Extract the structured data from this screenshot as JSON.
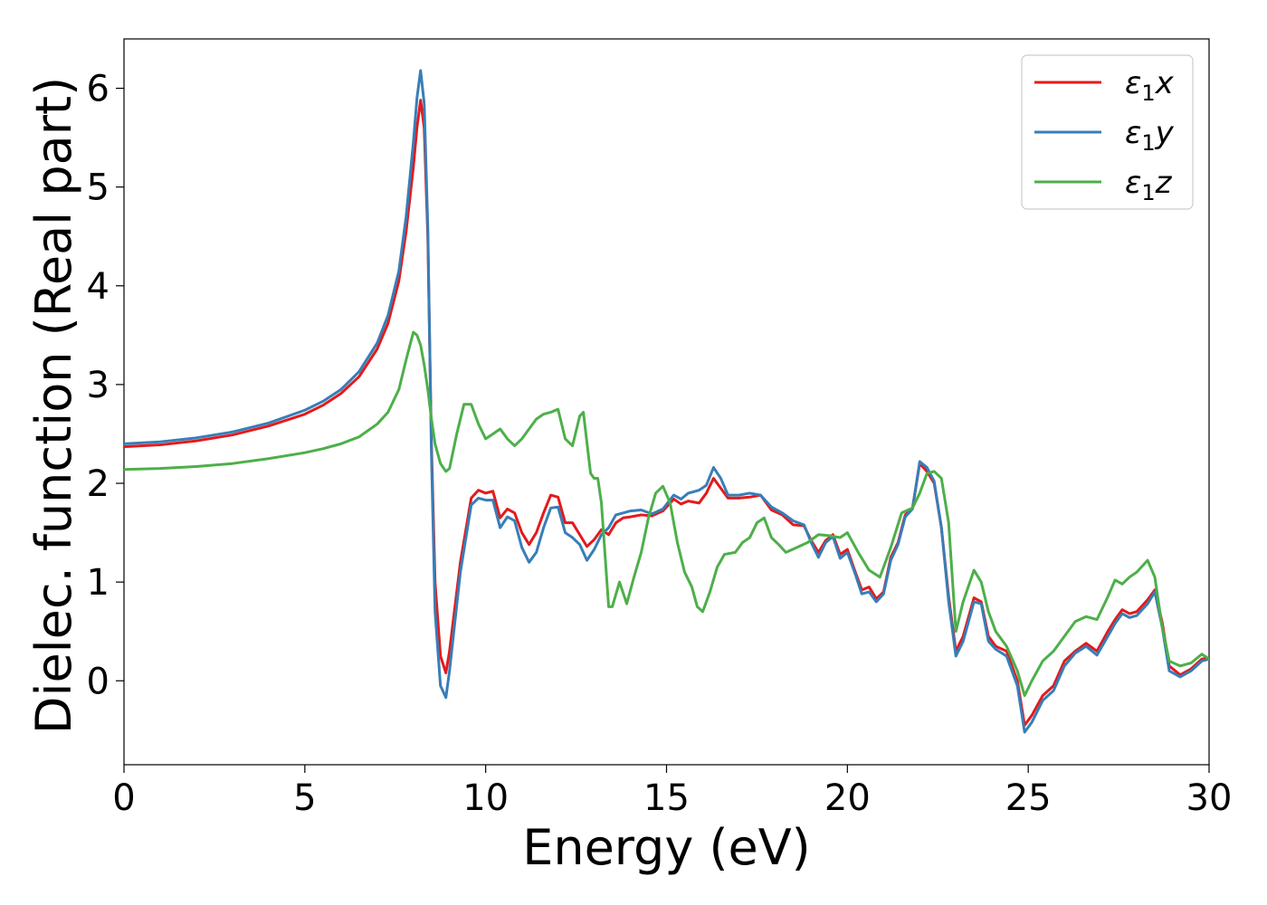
{
  "chart_data": {
    "type": "line",
    "xlabel": "Energy (eV)",
    "ylabel": "Dielec. function (Real part)",
    "xlim": [
      0,
      30
    ],
    "ylim": [
      -0.85,
      6.5
    ],
    "xticks": [
      0,
      5,
      10,
      15,
      20,
      25,
      30
    ],
    "yticks": [
      0,
      1,
      2,
      3,
      4,
      5,
      6
    ],
    "grid": false,
    "legend_position": "top-right",
    "series": [
      {
        "name": "ε1x",
        "legend_base": "ε",
        "legend_sub": "1",
        "legend_var": "x",
        "color": "#e41a1c",
        "x": [
          0,
          1,
          2,
          3,
          4,
          5,
          5.5,
          6,
          6.5,
          7,
          7.3,
          7.6,
          7.8,
          8.0,
          8.1,
          8.2,
          8.3,
          8.4,
          8.5,
          8.6,
          8.75,
          8.9,
          9.0,
          9.3,
          9.6,
          9.8,
          10.0,
          10.2,
          10.4,
          10.6,
          10.8,
          11.0,
          11.2,
          11.4,
          11.6,
          11.8,
          12.0,
          12.2,
          12.4,
          12.6,
          12.8,
          13.0,
          13.2,
          13.4,
          13.6,
          13.8,
          14.0,
          14.3,
          14.6,
          14.9,
          15.2,
          15.4,
          15.6,
          15.9,
          16.1,
          16.3,
          16.5,
          16.7,
          17.0,
          17.3,
          17.6,
          17.9,
          18.2,
          18.5,
          18.8,
          19.0,
          19.2,
          19.4,
          19.6,
          19.8,
          20.0,
          20.2,
          20.4,
          20.6,
          20.8,
          21.0,
          21.2,
          21.4,
          21.6,
          21.8,
          22.0,
          22.2,
          22.4,
          22.6,
          22.8,
          23.0,
          23.2,
          23.5,
          23.7,
          23.9,
          24.1,
          24.4,
          24.7,
          24.9,
          25.1,
          25.4,
          25.7,
          26.0,
          26.3,
          26.6,
          26.9,
          27.2,
          27.4,
          27.6,
          27.8,
          28.0,
          28.3,
          28.5,
          28.7,
          28.9,
          29.2,
          29.5,
          29.8,
          30.0
        ],
        "y": [
          2.37,
          2.39,
          2.43,
          2.49,
          2.58,
          2.7,
          2.79,
          2.91,
          3.08,
          3.36,
          3.62,
          4.05,
          4.55,
          5.2,
          5.6,
          5.88,
          5.6,
          4.5,
          2.4,
          1.0,
          0.25,
          0.08,
          0.3,
          1.2,
          1.85,
          1.93,
          1.9,
          1.92,
          1.65,
          1.74,
          1.7,
          1.5,
          1.38,
          1.5,
          1.7,
          1.88,
          1.86,
          1.6,
          1.6,
          1.48,
          1.36,
          1.43,
          1.53,
          1.48,
          1.6,
          1.65,
          1.66,
          1.68,
          1.67,
          1.72,
          1.84,
          1.79,
          1.82,
          1.8,
          1.9,
          2.05,
          1.95,
          1.85,
          1.85,
          1.86,
          1.88,
          1.73,
          1.68,
          1.58,
          1.57,
          1.42,
          1.3,
          1.42,
          1.48,
          1.28,
          1.33,
          1.12,
          0.92,
          0.95,
          0.83,
          0.9,
          1.25,
          1.4,
          1.68,
          1.75,
          2.2,
          2.12,
          2.0,
          1.55,
          0.85,
          0.3,
          0.45,
          0.84,
          0.8,
          0.45,
          0.35,
          0.3,
          0.0,
          -0.45,
          -0.35,
          -0.15,
          -0.05,
          0.2,
          0.3,
          0.38,
          0.3,
          0.5,
          0.62,
          0.72,
          0.68,
          0.7,
          0.82,
          0.92,
          0.6,
          0.15,
          0.06,
          0.12,
          0.22,
          0.23
        ]
      },
      {
        "name": "ε1y",
        "legend_base": "ε",
        "legend_sub": "1",
        "legend_var": "y",
        "color": "#377eb8",
        "x": [
          0,
          1,
          2,
          3,
          4,
          5,
          5.5,
          6,
          6.5,
          7,
          7.3,
          7.6,
          7.8,
          8.0,
          8.1,
          8.2,
          8.3,
          8.4,
          8.5,
          8.6,
          8.75,
          8.9,
          9.0,
          9.3,
          9.6,
          9.8,
          10.0,
          10.2,
          10.4,
          10.6,
          10.8,
          11.0,
          11.2,
          11.4,
          11.6,
          11.8,
          12.0,
          12.2,
          12.4,
          12.6,
          12.8,
          13.0,
          13.2,
          13.4,
          13.6,
          13.8,
          14.0,
          14.3,
          14.6,
          14.9,
          15.2,
          15.4,
          15.6,
          15.9,
          16.1,
          16.3,
          16.5,
          16.7,
          17.0,
          17.3,
          17.6,
          17.9,
          18.2,
          18.5,
          18.8,
          19.0,
          19.2,
          19.4,
          19.6,
          19.8,
          20.0,
          20.2,
          20.4,
          20.6,
          20.8,
          21.0,
          21.2,
          21.4,
          21.6,
          21.8,
          22.0,
          22.2,
          22.4,
          22.6,
          22.8,
          23.0,
          23.2,
          23.5,
          23.7,
          23.9,
          24.1,
          24.4,
          24.7,
          24.9,
          25.1,
          25.4,
          25.7,
          26.0,
          26.3,
          26.6,
          26.9,
          27.2,
          27.4,
          27.6,
          27.8,
          28.0,
          28.3,
          28.5,
          28.7,
          28.9,
          29.2,
          29.5,
          29.8,
          30.0
        ],
        "y": [
          2.4,
          2.42,
          2.46,
          2.52,
          2.61,
          2.74,
          2.83,
          2.95,
          3.13,
          3.42,
          3.7,
          4.15,
          4.7,
          5.45,
          5.9,
          6.18,
          5.85,
          4.6,
          2.3,
          0.7,
          -0.05,
          -0.17,
          0.1,
          1.1,
          1.78,
          1.85,
          1.83,
          1.83,
          1.55,
          1.66,
          1.62,
          1.35,
          1.2,
          1.3,
          1.55,
          1.75,
          1.76,
          1.5,
          1.45,
          1.38,
          1.22,
          1.33,
          1.48,
          1.55,
          1.68,
          1.7,
          1.72,
          1.73,
          1.69,
          1.74,
          1.88,
          1.84,
          1.9,
          1.93,
          1.98,
          2.16,
          2.05,
          1.88,
          1.88,
          1.9,
          1.88,
          1.76,
          1.7,
          1.62,
          1.58,
          1.4,
          1.25,
          1.4,
          1.46,
          1.24,
          1.3,
          1.1,
          0.88,
          0.9,
          0.8,
          0.88,
          1.22,
          1.38,
          1.66,
          1.74,
          2.22,
          2.16,
          2.02,
          1.55,
          0.8,
          0.25,
          0.4,
          0.8,
          0.78,
          0.4,
          0.32,
          0.25,
          -0.05,
          -0.52,
          -0.42,
          -0.2,
          -0.1,
          0.15,
          0.28,
          0.35,
          0.26,
          0.45,
          0.58,
          0.68,
          0.64,
          0.66,
          0.78,
          0.9,
          0.55,
          0.1,
          0.04,
          0.1,
          0.2,
          0.22
        ]
      },
      {
        "name": "ε1z",
        "legend_base": "ε",
        "legend_sub": "1",
        "legend_var": "z",
        "color": "#4daf4a",
        "x": [
          0,
          1,
          2,
          3,
          4,
          5,
          5.5,
          6,
          6.5,
          7,
          7.3,
          7.6,
          7.8,
          8.0,
          8.1,
          8.2,
          8.3,
          8.4,
          8.5,
          8.6,
          8.75,
          8.9,
          9.0,
          9.2,
          9.4,
          9.6,
          9.8,
          10.0,
          10.2,
          10.4,
          10.6,
          10.8,
          11.0,
          11.2,
          11.4,
          11.6,
          11.8,
          12.0,
          12.2,
          12.4,
          12.6,
          12.7,
          12.9,
          13.0,
          13.1,
          13.2,
          13.4,
          13.5,
          13.7,
          13.9,
          14.1,
          14.3,
          14.5,
          14.7,
          14.9,
          15.1,
          15.3,
          15.5,
          15.7,
          15.85,
          16.0,
          16.2,
          16.4,
          16.6,
          16.9,
          17.1,
          17.3,
          17.5,
          17.7,
          17.9,
          18.1,
          18.3,
          18.6,
          18.9,
          19.2,
          19.5,
          19.8,
          20.0,
          20.3,
          20.6,
          20.9,
          21.2,
          21.5,
          21.8,
          22.0,
          22.2,
          22.4,
          22.6,
          22.8,
          23.0,
          23.2,
          23.5,
          23.7,
          23.9,
          24.1,
          24.4,
          24.7,
          24.9,
          25.1,
          25.4,
          25.7,
          26.0,
          26.3,
          26.6,
          26.9,
          27.2,
          27.4,
          27.6,
          27.8,
          28.0,
          28.3,
          28.5,
          28.7,
          28.9,
          29.2,
          29.5,
          29.8,
          30.0
        ],
        "y": [
          2.14,
          2.15,
          2.17,
          2.2,
          2.25,
          2.31,
          2.35,
          2.4,
          2.47,
          2.6,
          2.72,
          2.95,
          3.25,
          3.53,
          3.5,
          3.4,
          3.2,
          2.95,
          2.65,
          2.4,
          2.2,
          2.12,
          2.15,
          2.5,
          2.8,
          2.8,
          2.6,
          2.45,
          2.5,
          2.55,
          2.45,
          2.38,
          2.45,
          2.55,
          2.65,
          2.7,
          2.72,
          2.75,
          2.45,
          2.38,
          2.68,
          2.72,
          2.1,
          2.05,
          2.05,
          1.8,
          0.75,
          0.75,
          1.0,
          0.78,
          1.05,
          1.3,
          1.65,
          1.9,
          1.97,
          1.8,
          1.4,
          1.1,
          0.95,
          0.75,
          0.7,
          0.9,
          1.15,
          1.28,
          1.3,
          1.4,
          1.45,
          1.6,
          1.65,
          1.45,
          1.38,
          1.3,
          1.35,
          1.4,
          1.48,
          1.47,
          1.45,
          1.5,
          1.3,
          1.12,
          1.05,
          1.35,
          1.7,
          1.75,
          1.9,
          2.1,
          2.12,
          2.05,
          1.6,
          0.5,
          0.8,
          1.12,
          1.0,
          0.7,
          0.5,
          0.35,
          0.1,
          -0.15,
          0.0,
          0.2,
          0.3,
          0.45,
          0.6,
          0.65,
          0.62,
          0.85,
          1.02,
          0.98,
          1.05,
          1.1,
          1.22,
          1.05,
          0.55,
          0.2,
          0.15,
          0.18,
          0.27,
          0.22
        ]
      }
    ]
  }
}
